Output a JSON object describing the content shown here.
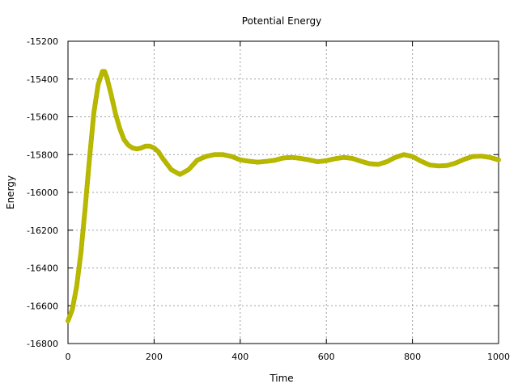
{
  "chart_data": {
    "type": "line",
    "title": "Potential Energy",
    "xlabel": "Time",
    "ylabel": "Energy",
    "xlim": [
      0,
      1000
    ],
    "ylim": [
      -16800,
      -15200
    ],
    "xticks": [
      "0",
      "200",
      "400",
      "600",
      "800",
      "1000"
    ],
    "yticks": [
      "-15200",
      "-15400",
      "-15600",
      "-15800",
      "-16000",
      "-16200",
      "-16400",
      "-16600",
      "-16800"
    ],
    "grid": true,
    "series": [
      {
        "color": "#c8c800",
        "x": [
          0,
          10,
          20,
          30,
          40,
          50,
          60,
          70,
          80,
          85,
          90,
          100,
          110,
          120,
          130,
          140,
          150,
          160,
          170,
          180,
          190,
          200,
          210,
          220,
          240,
          260,
          280,
          300,
          320,
          340,
          360,
          380,
          400,
          420,
          440,
          460,
          480,
          500,
          520,
          540,
          560,
          580,
          600,
          620,
          640,
          660,
          680,
          700,
          720,
          740,
          760,
          780,
          800,
          820,
          840,
          860,
          880,
          900,
          920,
          940,
          960,
          980,
          1000
        ],
        "y": [
          -16680,
          -16620,
          -16500,
          -16320,
          -16080,
          -15820,
          -15580,
          -15430,
          -15360,
          -15360,
          -15390,
          -15480,
          -15580,
          -15660,
          -15720,
          -15750,
          -15765,
          -15770,
          -15765,
          -15755,
          -15755,
          -15765,
          -15785,
          -15820,
          -15880,
          -15905,
          -15880,
          -15830,
          -15810,
          -15800,
          -15800,
          -15810,
          -15828,
          -15835,
          -15840,
          -15836,
          -15830,
          -15818,
          -15815,
          -15820,
          -15828,
          -15838,
          -15832,
          -15822,
          -15815,
          -15820,
          -15835,
          -15848,
          -15852,
          -15838,
          -15815,
          -15800,
          -15810,
          -15835,
          -15855,
          -15860,
          -15858,
          -15845,
          -15825,
          -15810,
          -15808,
          -15815,
          -15828
        ]
      }
    ]
  }
}
